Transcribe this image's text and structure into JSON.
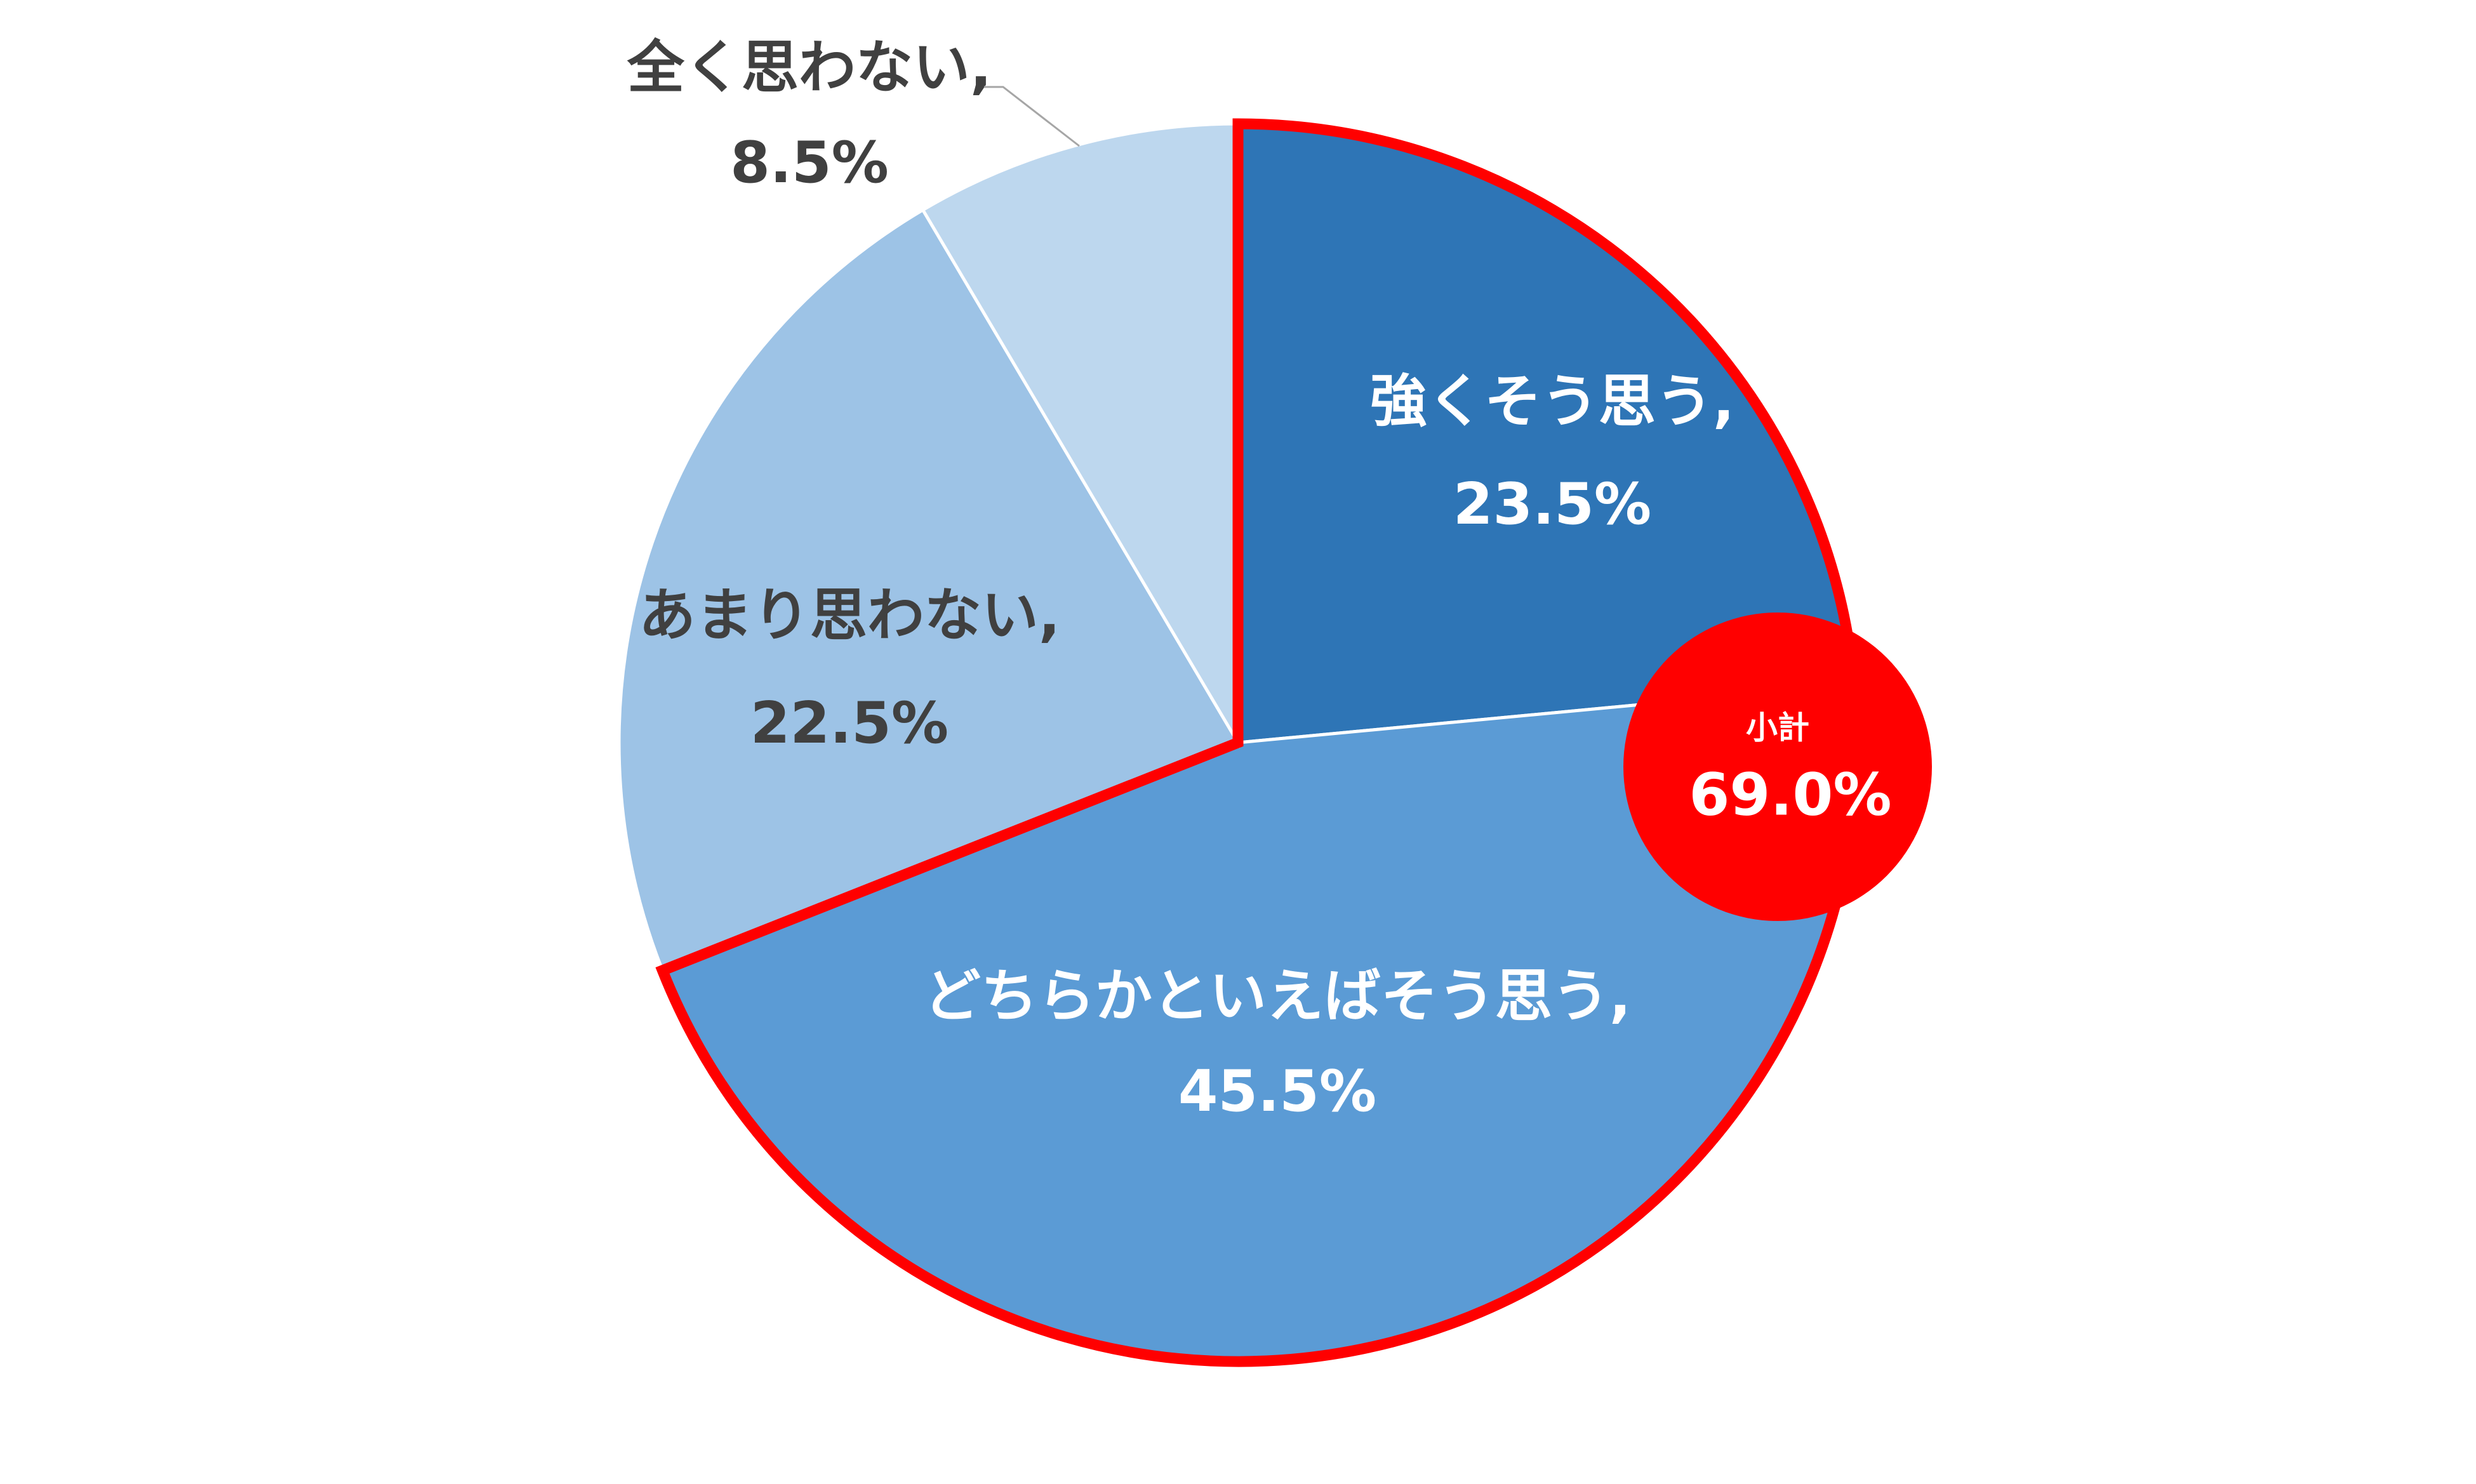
{
  "chart_data": {
    "type": "pie",
    "categories": [
      "強くそう思う,",
      "どちらかといえばそう思う,",
      "あまり思わない,",
      "全く思わない,"
    ],
    "values": [
      23.5,
      45.5,
      22.5,
      8.5
    ],
    "value_labels": [
      "23.5%",
      "45.5%",
      "22.5%",
      "8.5%"
    ],
    "colors": [
      "#2E75B6",
      "#5B9BD5",
      "#9DC3E6",
      "#BDD7EE"
    ],
    "label_colors": [
      "#FFFFFF",
      "#FFFFFF",
      "#404040",
      "#404040"
    ],
    "highlight": [
      0,
      1
    ],
    "highlight_color": "#FF0000",
    "annotation": {
      "title": "小計",
      "text": "69.0%"
    }
  }
}
